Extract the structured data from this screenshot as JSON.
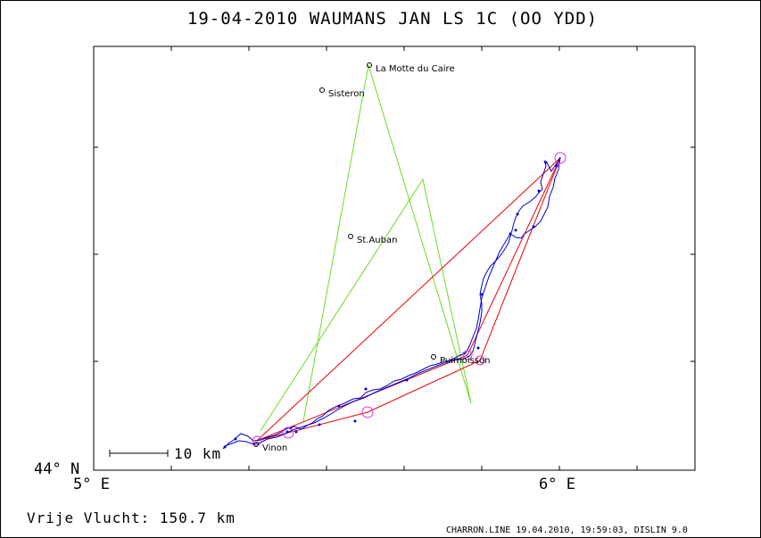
{
  "title": "19-04-2010   WAUMANS JAN   LS 1C (OO YDD)",
  "distance_label": "Vrije Vlucht:  150.7 km",
  "footer": "CHARRON.LINE 19.04.2010, 19:59:03, DISLIN 9.0",
  "axes": {
    "lat_label": "44° N",
    "lon_labels": [
      "5° E",
      "6° E"
    ]
  },
  "scale_bar": {
    "label": "10 km"
  },
  "colors": {
    "track": "#0000cc",
    "task": "#66dd22",
    "course": "#ee0000",
    "turnpoint": "#dd33dd",
    "frame": "#000000"
  },
  "cities": [
    {
      "name": "La Motte du Caire"
    },
    {
      "name": "Sisteron"
    },
    {
      "name": "St.Auban"
    },
    {
      "name": "Puimoisson"
    },
    {
      "name": "Vinon"
    }
  ]
}
